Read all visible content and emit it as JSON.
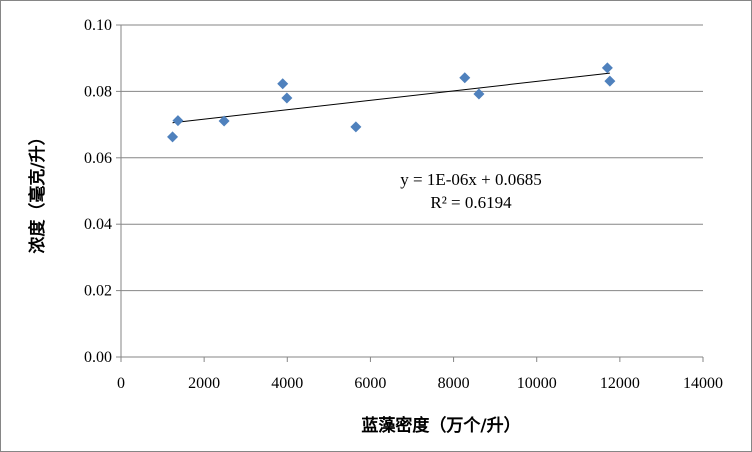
{
  "chart_data": {
    "type": "scatter",
    "title": "",
    "xlabel": "蓝藻密度（万个/升）",
    "ylabel": "浓度（毫克/升）",
    "xlim": [
      0,
      14000
    ],
    "ylim": [
      0,
      0.1
    ],
    "xticks": [
      "0",
      "2000",
      "4000",
      "6000",
      "8000",
      "10000",
      "12000",
      "14000"
    ],
    "yticks": [
      "0.00",
      "0.02",
      "0.04",
      "0.06",
      "0.08",
      "0.10"
    ],
    "grid": "horizontal",
    "marker": "diamond",
    "marker_color": "#4F81BD",
    "points": [
      {
        "x": 1240,
        "y": 0.0663
      },
      {
        "x": 1370,
        "y": 0.0712
      },
      {
        "x": 2480,
        "y": 0.0711
      },
      {
        "x": 3890,
        "y": 0.0823
      },
      {
        "x": 3990,
        "y": 0.078
      },
      {
        "x": 5650,
        "y": 0.0693
      },
      {
        "x": 8270,
        "y": 0.0841
      },
      {
        "x": 8610,
        "y": 0.0792
      },
      {
        "x": 11700,
        "y": 0.0871
      },
      {
        "x": 11760,
        "y": 0.0831
      }
    ],
    "trendline": {
      "type": "linear",
      "equation": "y = 1E-06x + 0.0685",
      "r2": "R² = 0.6194",
      "color": "#000000"
    }
  }
}
